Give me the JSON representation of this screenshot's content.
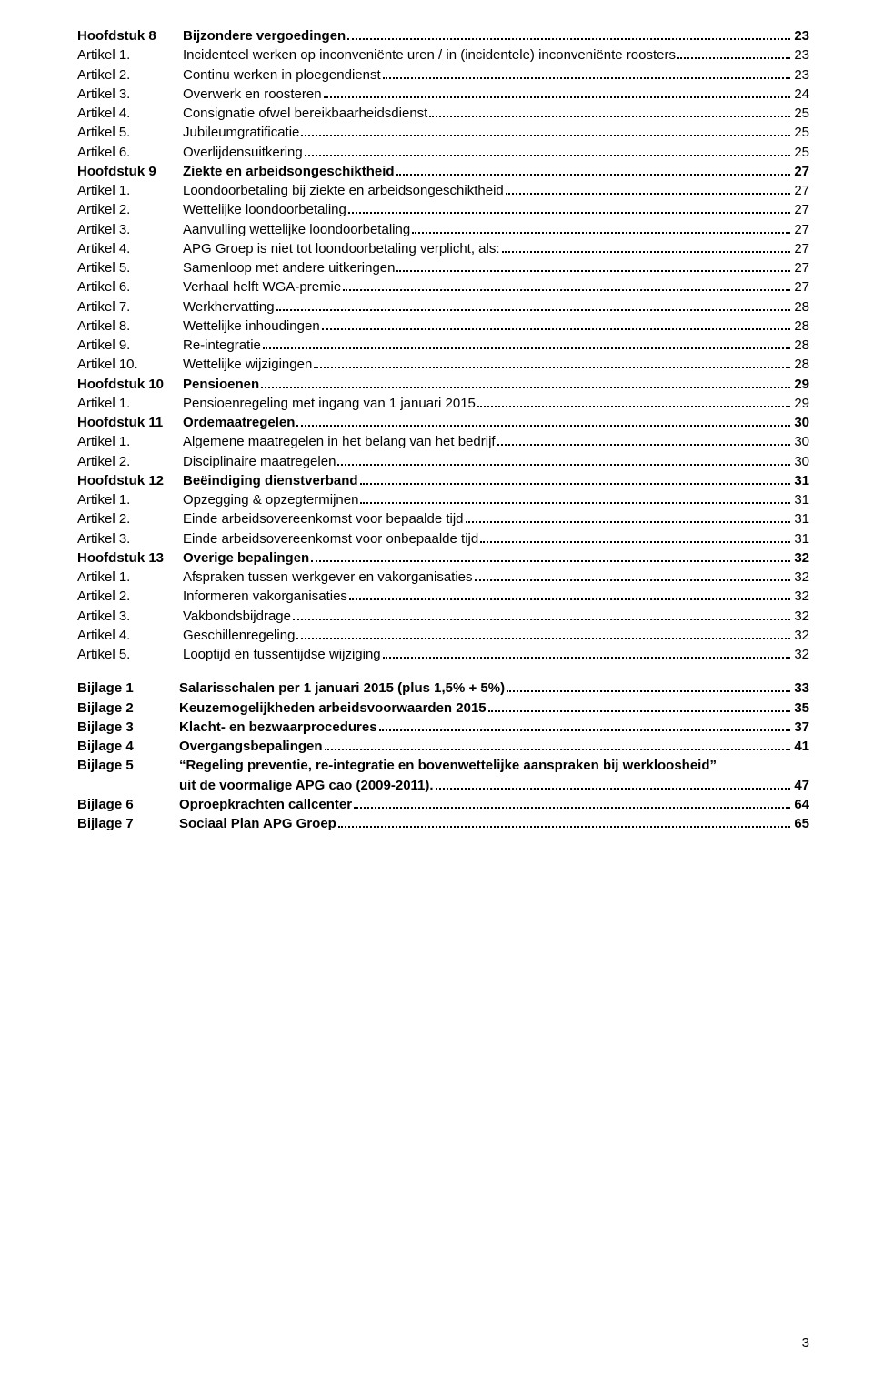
{
  "page_number": "3",
  "toc": [
    {
      "label": "Hoofdstuk 8",
      "title": "Bijzondere vergoedingen",
      "page": "23",
      "bold": true
    },
    {
      "label": "Artikel 1.",
      "title": "Incidenteel werken op inconveniënte uren / in (incidentele) inconveniënte roosters",
      "page": "23"
    },
    {
      "label": "Artikel 2.",
      "title": "Continu werken in ploegendienst",
      "page": "23"
    },
    {
      "label": "Artikel 3.",
      "title": "Overwerk en roosteren",
      "page": "24"
    },
    {
      "label": "Artikel 4.",
      "title": "Consignatie ofwel bereikbaarheidsdienst",
      "page": "25"
    },
    {
      "label": "Artikel 5.",
      "title": "Jubileumgratificatie",
      "page": "25"
    },
    {
      "label": "Artikel 6.",
      "title": "Overlijdensuitkering",
      "page": "25"
    },
    {
      "label": "Hoofdstuk 9",
      "title": "Ziekte en arbeidsongeschiktheid",
      "page": "27",
      "bold": true
    },
    {
      "label": "Artikel 1.",
      "title": "Loondoorbetaling bij ziekte en arbeidsongeschiktheid",
      "page": "27"
    },
    {
      "label": "Artikel 2.",
      "title": "Wettelijke loondoorbetaling",
      "page": "27"
    },
    {
      "label": "Artikel 3.",
      "title": "Aanvulling wettelijke loondoorbetaling",
      "page": "27"
    },
    {
      "label": "Artikel 4.",
      "title": "APG Groep is niet tot loondoorbetaling verplicht, als:",
      "page": "27"
    },
    {
      "label": "Artikel 5.",
      "title": "Samenloop met andere uitkeringen",
      "page": "27"
    },
    {
      "label": "Artikel 6.",
      "title": "Verhaal helft WGA-premie",
      "page": "27"
    },
    {
      "label": "Artikel 7.",
      "title": "Werkhervatting",
      "page": "28"
    },
    {
      "label": "Artikel 8.",
      "title": "Wettelijke inhoudingen",
      "page": "28"
    },
    {
      "label": "Artikel 9.",
      "title": "Re-integratie",
      "page": "28"
    },
    {
      "label": "Artikel 10.",
      "title": "Wettelijke wijzigingen",
      "page": "28"
    },
    {
      "label": "Hoofdstuk 10",
      "title": "Pensioenen",
      "page": "29",
      "bold": true
    },
    {
      "label": "Artikel 1.",
      "title": "Pensioenregeling met ingang van 1 januari 2015",
      "page": "29"
    },
    {
      "label": "Hoofdstuk 11",
      "title": "Ordemaatregelen",
      "page": "30",
      "bold": true
    },
    {
      "label": "Artikel 1.",
      "title": "Algemene maatregelen in het belang van het bedrijf",
      "page": "30"
    },
    {
      "label": "Artikel 2.",
      "title": "Disciplinaire maatregelen",
      "page": "30"
    },
    {
      "label": "Hoofdstuk 12",
      "title": "Beëindiging dienstverband",
      "page": "31",
      "bold": true
    },
    {
      "label": "Artikel 1.",
      "title": "Opzegging & opzegtermijnen",
      "page": "31"
    },
    {
      "label": "Artikel 2.",
      "title": "Einde arbeidsovereenkomst voor bepaalde tijd",
      "page": "31"
    },
    {
      "label": "Artikel 3.",
      "title": "Einde arbeidsovereenkomst voor onbepaalde tijd",
      "page": "31"
    },
    {
      "label": "Hoofdstuk 13",
      "title": "Overige bepalingen",
      "page": "32",
      "bold": true
    },
    {
      "label": "Artikel 1.",
      "title": "Afspraken tussen werkgever en vakorganisaties",
      "page": "32"
    },
    {
      "label": "Artikel 2.",
      "title": "Informeren vakorganisaties",
      "page": "32"
    },
    {
      "label": "Artikel 3.",
      "title": "Vakbondsbijdrage",
      "page": "32"
    },
    {
      "label": "Artikel 4.",
      "title": "Geschillenregeling",
      "page": "32"
    },
    {
      "label": "Artikel 5.",
      "title": "Looptijd en tussentijdse wijziging",
      "page": "32"
    }
  ],
  "bijlagen": [
    {
      "label": "Bijlage 1",
      "title": "Salarisschalen per 1 januari 2015 (plus 1,5% + 5%)",
      "page": "33"
    },
    {
      "label": "Bijlage 2",
      "title": "Keuzemogelijkheden arbeidsvoorwaarden 2015",
      "page": "35"
    },
    {
      "label": "Bijlage 3",
      "title": "Klacht- en bezwaarprocedures",
      "page": "37"
    },
    {
      "label": "Bijlage 4",
      "title": "Overgangsbepalingen",
      "page": "41"
    },
    {
      "label": "Bijlage 5",
      "title_line1": "“Regeling preventie, re-integratie en bovenwettelijke aanspraken bij werkloosheid”",
      "title_line2": "uit de voormalige APG cao (2009-2011).",
      "page": "47",
      "multiline": true
    },
    {
      "label": "Bijlage 6",
      "title": "Oproepkrachten callcenter",
      "page": "64"
    },
    {
      "label": "Bijlage 7",
      "title": "Sociaal Plan APG Groep",
      "page": "65"
    }
  ]
}
